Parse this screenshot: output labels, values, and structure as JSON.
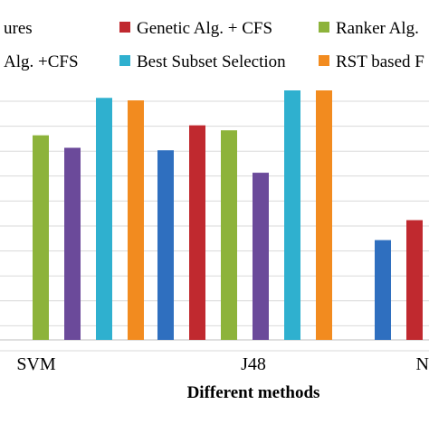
{
  "chart_data": {
    "type": "bar",
    "xlabel": "Different methods",
    "categories": [
      "SVM",
      "J48",
      "N"
    ],
    "legend": [
      {
        "label": "ures",
        "color": "#1f1f1f",
        "row": 0,
        "slot": 0
      },
      {
        "label": "Genetic Alg. + CFS",
        "color": "#c0292f",
        "row": 0,
        "slot": 1
      },
      {
        "label": "Ranker Alg.",
        "color": "#8db33b",
        "row": 0,
        "slot": 2
      },
      {
        "label": "Alg. +CFS",
        "color": "#6b4a9a",
        "row": 1,
        "slot": 0
      },
      {
        "label": "Best Subset Selection",
        "color": "#2fb0cf",
        "row": 1,
        "slot": 1
      },
      {
        "label": "RST based F",
        "color": "#f28b1f",
        "row": 1,
        "slot": 2
      }
    ],
    "series": [
      {
        "color": "#2f6fbf",
        "values": [
          null,
          0.76,
          0.4
        ]
      },
      {
        "color": "#c0292f",
        "values": [
          null,
          0.86,
          0.48
        ]
      },
      {
        "color": "#8db33b",
        "values": [
          0.82,
          0.84,
          null
        ]
      },
      {
        "color": "#6b4a9a",
        "values": [
          0.77,
          0.67,
          null
        ]
      },
      {
        "color": "#2fb0cf",
        "values": [
          0.97,
          1.0,
          null
        ]
      },
      {
        "color": "#f28b1f",
        "values": [
          0.96,
          1.0,
          null
        ]
      }
    ],
    "ylim": [
      0,
      1.0
    ],
    "grid": true
  }
}
